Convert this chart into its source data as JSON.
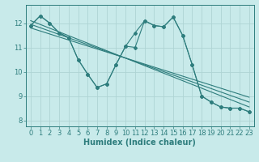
{
  "background_color": "#c8eaea",
  "grid_color": "#aed4d4",
  "line_color": "#2e7d7d",
  "xlabel": "Humidex (Indice chaleur)",
  "xlim": [
    -0.5,
    23.5
  ],
  "ylim": [
    7.75,
    12.75
  ],
  "xticks": [
    0,
    1,
    2,
    3,
    4,
    5,
    6,
    7,
    8,
    9,
    10,
    11,
    12,
    13,
    14,
    15,
    16,
    17,
    18,
    19,
    20,
    21,
    22,
    23
  ],
  "yticks": [
    8,
    9,
    10,
    11,
    12
  ],
  "y_main": [
    11.9,
    12.3,
    12.0,
    11.6,
    11.4,
    10.5,
    9.9,
    9.35,
    9.5,
    10.3,
    11.05,
    11.6,
    12.1,
    11.9,
    11.85,
    12.25,
    11.5,
    10.3,
    9.0,
    8.75,
    8.55,
    8.5,
    8.5,
    8.35
  ],
  "y_line2": [
    11.9,
    12.3,
    12.0,
    11.6,
    11.4,
    10.5,
    9.9,
    9.35,
    9.5,
    10.3,
    11.05,
    11.0,
    12.1,
    11.9,
    11.85,
    12.25,
    11.5,
    10.3,
    9.0,
    8.75,
    8.55,
    8.5,
    8.5,
    8.35
  ],
  "trend_lines": [
    [
      [
        0,
        23
      ],
      [
        11.8,
        8.95
      ]
    ],
    [
      [
        0,
        23
      ],
      [
        11.95,
        8.75
      ]
    ],
    [
      [
        0,
        23
      ],
      [
        12.1,
        8.55
      ]
    ]
  ],
  "markersize": 2.0,
  "linewidth": 0.8,
  "xlabel_fontsize": 7,
  "tick_fontsize": 6
}
